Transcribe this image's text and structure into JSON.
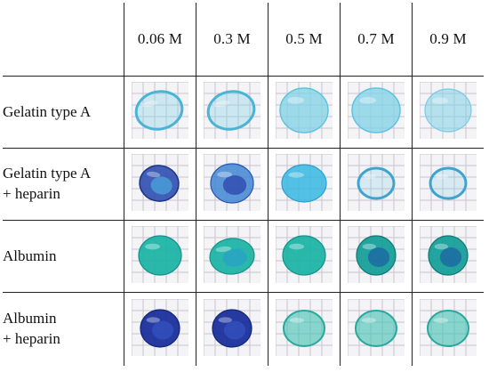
{
  "columns": [
    "0.06 M",
    "0.3 M",
    "0.5 M",
    "0.7 M",
    "0.9 M"
  ],
  "rows": [
    {
      "label_lines": [
        "Gelatin type A"
      ]
    },
    {
      "label_lines": [
        "Gelatin type A",
        "+ heparin"
      ]
    },
    {
      "label_lines": [
        "Albumin"
      ]
    },
    {
      "label_lines": [
        "Albumin",
        "+ heparin"
      ]
    }
  ],
  "colors": {
    "grid_line": "#c9c3cf",
    "gelatin_clear": "#7fd1e6",
    "gelatin_dark": "#2f4fb0",
    "albumin": "#1fb4a6",
    "albumin_dark": "#1a2f9c",
    "albumin_light": "#3fc1b4"
  },
  "samples": [
    [
      "gelatin-ring-pale",
      "gelatin-ring-pale",
      "gelatin-fill-light",
      "gelatin-fill-light",
      "gelatin-fill-pale"
    ],
    [
      "gelatin-dark-blob",
      "gelatin-mixed-blob",
      "gelatin-fill-medium",
      "gelatin-thin-ring",
      "gelatin-thin-ring"
    ],
    [
      "albumin-disc",
      "albumin-disc-torn",
      "albumin-disc",
      "albumin-disc-dark",
      "albumin-disc-dark"
    ],
    [
      "albumin-heparin-dark",
      "albumin-heparin-dark",
      "albumin-heparin-light",
      "albumin-heparin-light",
      "albumin-heparin-light"
    ]
  ]
}
